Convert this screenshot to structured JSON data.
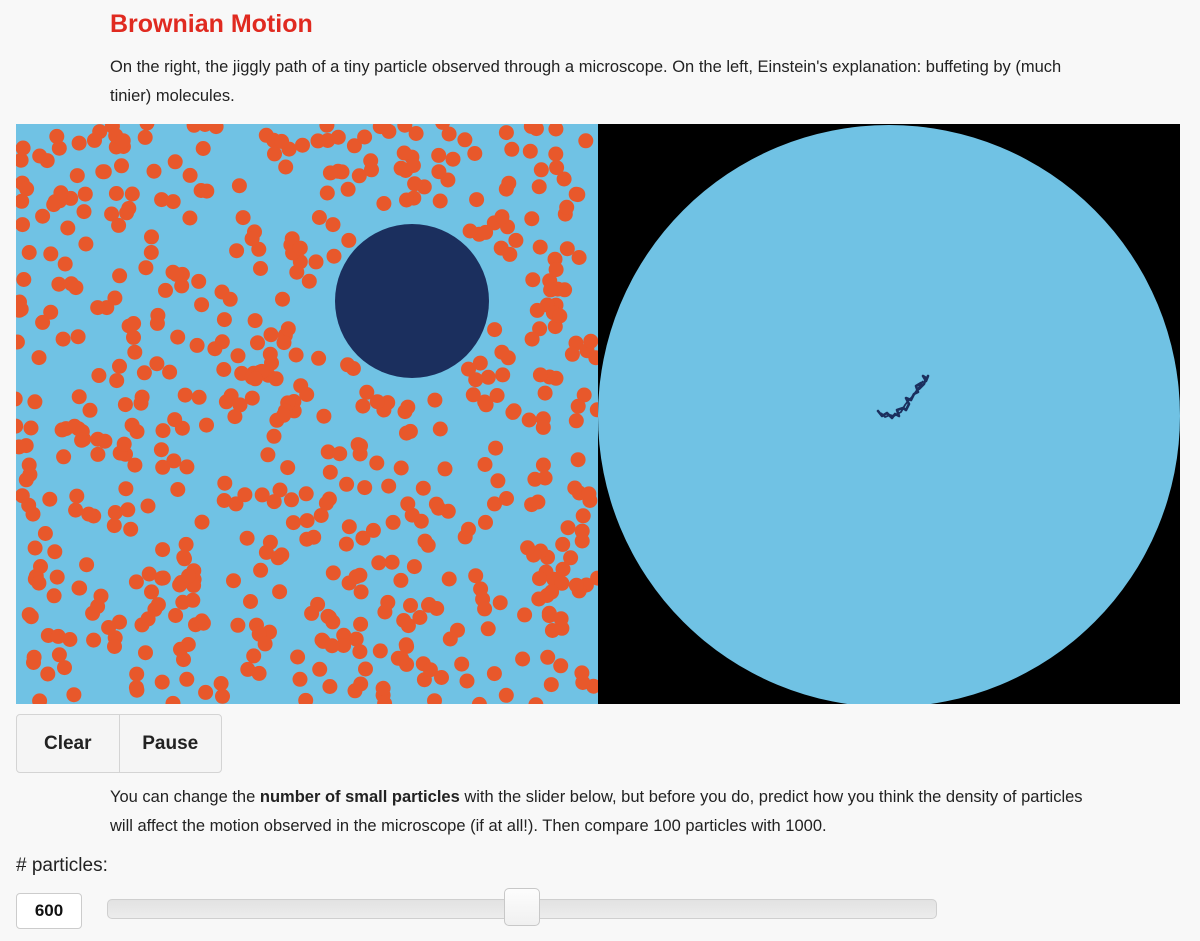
{
  "header": {
    "title": "Brownian Motion",
    "intro": "On the right, the jiggly path of a tiny particle observed through a microscope. On the left, Einstein's explanation: buffeting by (much tinier) molecules."
  },
  "controls": {
    "clear_label": "Clear",
    "pause_label": "Pause"
  },
  "explanation": {
    "before": "You can change the ",
    "bold": "number of small particles",
    "after": " with the slider below, but before you do, predict how you think the density of particles will affect the motion observed in the microscope (if at all!). Then compare 100 particles with 1000."
  },
  "slider": {
    "label": "# particles:",
    "value": "600",
    "min": 0,
    "max": 1200,
    "current": 600
  },
  "simulation": {
    "particle_count": 600
  },
  "colors": {
    "title": "#e02a20",
    "fluid": "#70c2e4",
    "small_particle": "#e8582b",
    "big_particle": "#1b2f5e",
    "microscope_bg": "#000000",
    "path": "#1b2f5e"
  }
}
